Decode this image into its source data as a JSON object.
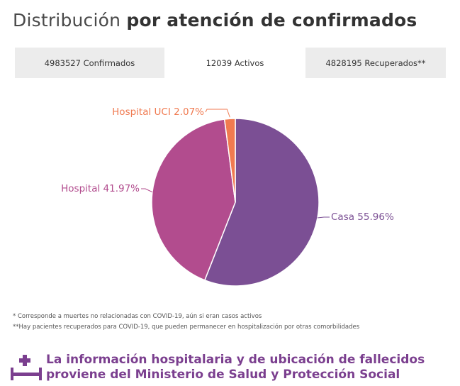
{
  "header": {
    "title_light": "Distribución",
    "title_bold": "por atención de confirmados"
  },
  "tabs": [
    {
      "label": "4983527 Confirmados",
      "selected": false
    },
    {
      "label": "12039 Activos",
      "selected": true
    },
    {
      "label": "4828195 Recuperados**",
      "selected": false
    }
  ],
  "chart_data": {
    "type": "pie",
    "slices": [
      {
        "name": "Casa",
        "value": 55.96,
        "label": "Casa 55.96%",
        "color": "#7b4f94"
      },
      {
        "name": "Hospital",
        "value": 41.97,
        "label": "Hospital 41.97%",
        "color": "#b24c8e"
      },
      {
        "name": "Hospital UCI",
        "value": 2.07,
        "label": "Hospital UCI 2.07%",
        "color": "#f07a50"
      }
    ]
  },
  "notes": {
    "note1": "* Corresponde a muertes no relacionadas con COVID-19, aún si eran casos activos",
    "note2": "**Hay pacientes recuperados para COVID-19, que pueden permanecer en hospitalización por otras comorbilidades"
  },
  "footer": {
    "line1": "La información hospitalaria y de ubicación de fallecidos",
    "line2": "proviene del Ministerio de Salud y Protección Social",
    "color": "#7b3f8f"
  }
}
